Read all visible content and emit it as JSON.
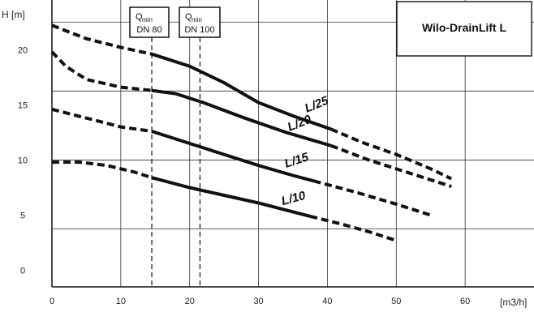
{
  "chart_data": {
    "type": "line",
    "title": "Wilo-DrainLift L",
    "ylabel": "H [m]",
    "xlabel": "[m3/h]",
    "xlim": [
      0,
      70
    ],
    "ylim": [
      -1.5,
      24.5
    ],
    "x_ticks": [
      "0",
      "10",
      "20",
      "30",
      "40",
      "50",
      "60"
    ],
    "y_ticks": [
      "0",
      "5",
      "10",
      "15",
      "20"
    ],
    "grid": true,
    "qmin_markers": [
      {
        "label": "Q",
        "sub": "min",
        "dn": "DN 80",
        "x": 14.5
      },
      {
        "label": "Q",
        "sub": "min",
        "dn": "DN 100",
        "x": 21.5
      }
    ],
    "series": [
      {
        "name": "L/25",
        "dashed_start": [
          [
            0,
            22.2
          ],
          [
            5,
            21
          ],
          [
            10,
            20.2
          ],
          [
            14.5,
            19.6
          ]
        ],
        "solid": [
          [
            14.5,
            19.6
          ],
          [
            20,
            18.5
          ],
          [
            25,
            17
          ],
          [
            30,
            15.2
          ],
          [
            35,
            14
          ],
          [
            40.5,
            12.8
          ]
        ],
        "dashed_end": [
          [
            40.5,
            12.8
          ],
          [
            45,
            11.6
          ],
          [
            50,
            10.5
          ],
          [
            55,
            9.2
          ],
          [
            58,
            8.3
          ]
        ]
      },
      {
        "name": "L/20",
        "dashed_start": [
          [
            0,
            19.8
          ],
          [
            2,
            18.5
          ],
          [
            5,
            17.3
          ],
          [
            10,
            16.6
          ],
          [
            14.5,
            16.3
          ]
        ],
        "solid": [
          [
            14.5,
            16.3
          ],
          [
            18,
            16
          ],
          [
            22,
            15.2
          ],
          [
            28,
            13.8
          ],
          [
            34,
            12.5
          ],
          [
            40.5,
            11.3
          ]
        ],
        "dashed_end": [
          [
            40.5,
            11.3
          ],
          [
            46,
            10
          ],
          [
            52,
            8.8
          ],
          [
            58,
            7.6
          ]
        ]
      },
      {
        "name": "L/15",
        "dashed_start": [
          [
            0,
            14.6
          ],
          [
            5,
            13.8
          ],
          [
            10,
            13
          ],
          [
            14.5,
            12.6
          ]
        ],
        "solid": [
          [
            14.5,
            12.6
          ],
          [
            20,
            11.5
          ],
          [
            25,
            10.5
          ],
          [
            30,
            9.5
          ],
          [
            35,
            8.6
          ],
          [
            38,
            8.1
          ]
        ],
        "dashed_end": [
          [
            38,
            8.1
          ],
          [
            44,
            7.1
          ],
          [
            50,
            6
          ],
          [
            55,
            5
          ]
        ]
      },
      {
        "name": "L/10",
        "dashed_start": [
          [
            0,
            9.8
          ],
          [
            4,
            9.8
          ],
          [
            8,
            9.5
          ],
          [
            12,
            8.9
          ],
          [
            14.5,
            8.4
          ]
        ],
        "solid": [
          [
            14.5,
            8.4
          ],
          [
            20,
            7.5
          ],
          [
            25,
            6.8
          ],
          [
            30,
            6.1
          ],
          [
            37.5,
            4.9
          ]
        ],
        "dashed_end": [
          [
            37.5,
            4.9
          ],
          [
            42,
            4.2
          ],
          [
            46,
            3.5
          ],
          [
            50,
            2.7
          ]
        ]
      }
    ]
  }
}
